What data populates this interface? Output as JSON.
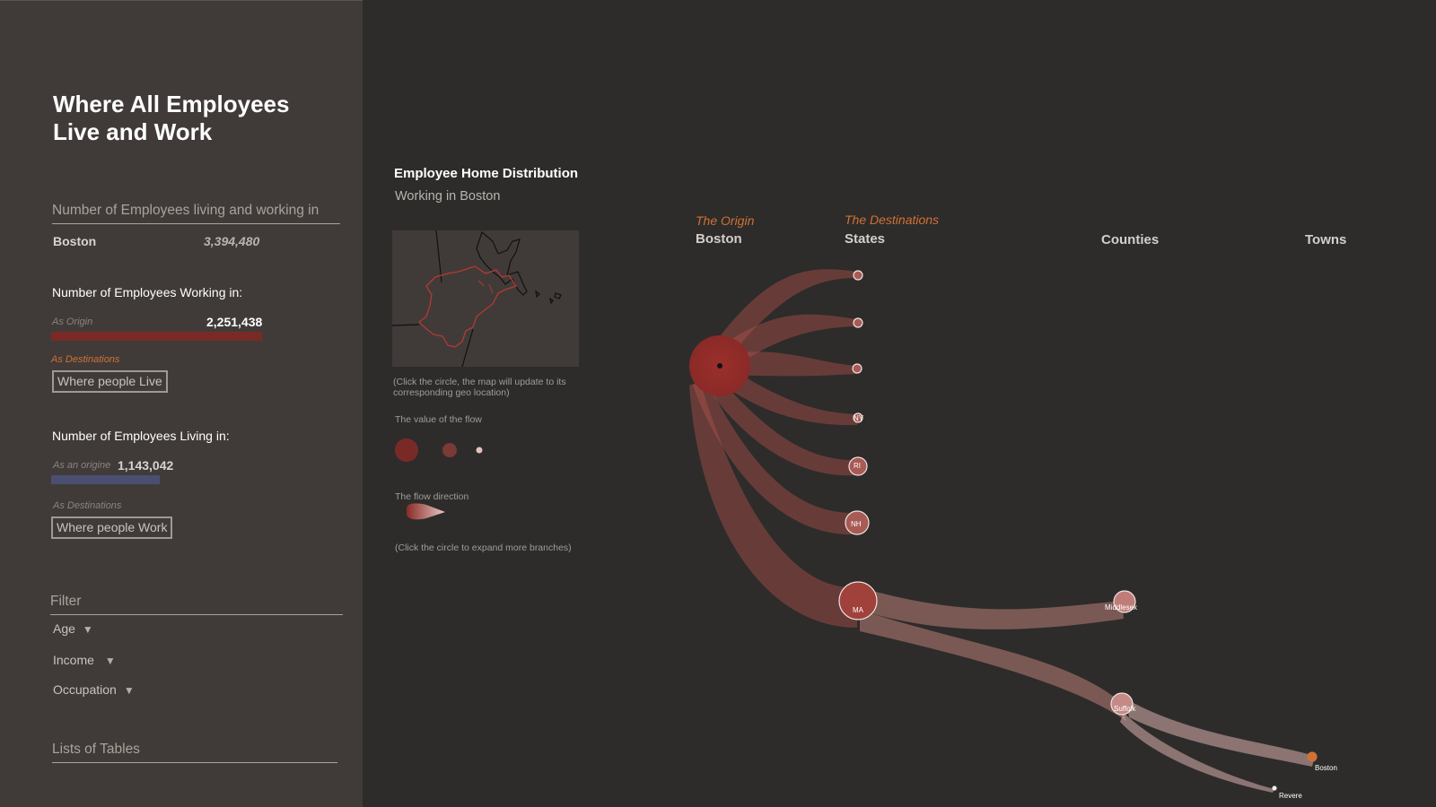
{
  "sidebar": {
    "title_line1": "Where All Employees",
    "title_line2": "Live and Work",
    "living_working": {
      "heading": "Number of Employees living and working in",
      "place": "Boston",
      "value": "3,394,480"
    },
    "working_in": {
      "heading": "Number of Employees Working in:",
      "origin_label": "As Origin",
      "origin_value": "2,251,438",
      "origin_fraction": 0.66,
      "destinations_label": "As Destinations",
      "button_label": "Where people Live"
    },
    "living_in": {
      "heading": "Number of Employees Living in:",
      "origin_label": "As an origine",
      "origin_value": "1,143,042",
      "origin_fraction": 0.34,
      "destinations_label": "As Destinations",
      "button_label": "Where people Work"
    },
    "filter": {
      "heading": "Filter",
      "items": [
        "Age",
        "Income",
        "Occupation"
      ]
    },
    "tables_heading": "Lists of Tables"
  },
  "main": {
    "title": "Employee Home Distribution",
    "subtitle": "Working in Boston",
    "map_note": "(Click the circle, the map will update to its corresponding geo location)",
    "legend_value_label": "The value of the flow",
    "legend_direction_label": "The flow direction",
    "expand_note": "(Click the circle to expand more branches)"
  },
  "columns": {
    "origin_italic": "The Origin",
    "origin_name": "Boston",
    "destinations_italic": "The Destinations",
    "states": "States",
    "counties": "Counties",
    "towns": "Towns"
  },
  "flow_nodes": {
    "states": [
      "",
      "",
      "",
      "NY",
      "RI",
      "NH",
      "MA"
    ],
    "counties": [
      "Middlesex",
      "Suffolk"
    ],
    "towns": [
      "Boston",
      "Revere"
    ]
  },
  "colors": {
    "accent_orange": "#d07136",
    "flow_red": "#9b2f2b",
    "origin_bar": "#7a2a26",
    "living_bar": "#4a4f72",
    "background": "#2d2c2a",
    "panel": "#403b38"
  }
}
